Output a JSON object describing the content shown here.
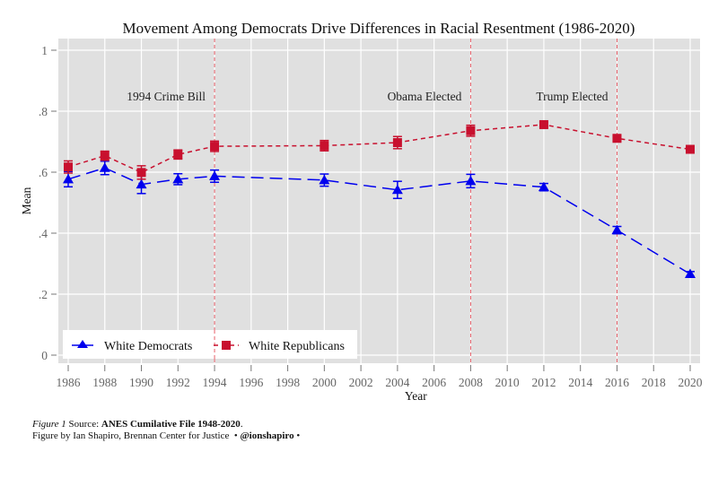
{
  "chart_data": {
    "type": "line",
    "title": "Movement Among Democrats Drive Differences in Racial Resentment (1986-2020)",
    "xlabel": "Year",
    "ylabel": "Mean",
    "xlim": [
      1985.5,
      2020.5
    ],
    "ylim": [
      -0.04,
      1.04
    ],
    "xticks": [
      1986,
      1988,
      1990,
      1992,
      1994,
      1996,
      1998,
      2000,
      2002,
      2004,
      2006,
      2008,
      2010,
      2012,
      2014,
      2016,
      2018,
      2020
    ],
    "xtick_labels": [
      "1986",
      "1988",
      "1990",
      "1992",
      "1994",
      "1996",
      "1998",
      "2000",
      "2002",
      "2004",
      "2006",
      "2008",
      "2010",
      "2012",
      "2014",
      "2016",
      "2018",
      "2020"
    ],
    "yticks": [
      0,
      0.2,
      0.4,
      0.6,
      0.8,
      1
    ],
    "ytick_labels": [
      "0",
      ".2",
      ".4",
      ".6",
      ".8",
      "1"
    ],
    "grid": true,
    "x": [
      1986,
      1988,
      1990,
      1992,
      1994,
      2000,
      2004,
      2008,
      2012,
      2016,
      2020
    ],
    "series": [
      {
        "name": "White Democrats",
        "color": "#0000ee",
        "marker": "triangle",
        "linestyle": "long-dash",
        "values": [
          0.577,
          0.614,
          0.56,
          0.577,
          0.587,
          0.574,
          0.542,
          0.571,
          0.551,
          0.41,
          0.266
        ],
        "errors": [
          0.025,
          0.022,
          0.03,
          0.018,
          0.02,
          0.02,
          0.028,
          0.022,
          0.012,
          0.012,
          0.008
        ]
      },
      {
        "name": "White Republicans",
        "color": "#c8102e",
        "marker": "square",
        "linestyle": "short-dash",
        "values": [
          0.617,
          0.654,
          0.599,
          0.658,
          0.685,
          0.687,
          0.697,
          0.736,
          0.756,
          0.711,
          0.675
        ],
        "errors": [
          0.02,
          0.015,
          0.022,
          0.015,
          0.017,
          0.017,
          0.02,
          0.018,
          0.008,
          0.008,
          0.005
        ]
      }
    ],
    "reference_lines": [
      {
        "x": 1994,
        "label": "1994 Crime Bill",
        "color": "#e8606a"
      },
      {
        "x": 2008,
        "label": "Obama Elected",
        "color": "#e8606a"
      },
      {
        "x": 2016,
        "label": "Trump Elected",
        "color": "#e8606a"
      }
    ],
    "legend": {
      "placement": "bottom-left",
      "entries": [
        "White Democrats",
        "White Republicans"
      ]
    }
  },
  "footer": {
    "figure_label": "Figure 1",
    "source_prefix": " Source: ",
    "source_name": "ANES Cumilative File 1948-2020",
    "source_suffix": ".",
    "credit": "Figure by Ian Shapiro, Brennan Center for Justice  • ",
    "handle": "@ionshapiro",
    "handle_suffix": " •"
  }
}
